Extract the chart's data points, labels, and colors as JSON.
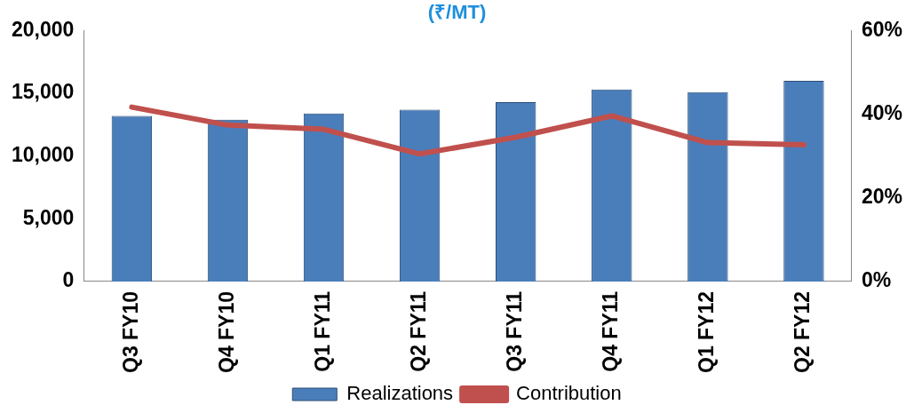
{
  "chart_data": {
    "type": "bar",
    "title": "(₹/MT)",
    "categories": [
      "Q3 FY10",
      "Q4 FY10",
      "Q1 FY11",
      "Q2 FY11",
      "Q3 FY11",
      "Q4 FY11",
      "Q1 FY12",
      "Q2 FY12"
    ],
    "series": [
      {
        "name": "Realizations",
        "color": "#4a7ebb",
        "values": [
          13200,
          12900,
          13400,
          13700,
          14300,
          15300,
          15100,
          16000
        ]
      },
      {
        "name": "Contribution",
        "type": "line",
        "axis": "y2",
        "color": "#c0504d",
        "values": [
          41.7,
          37.4,
          36.4,
          30.5,
          34.5,
          39.6,
          33.2,
          32.7
        ]
      }
    ],
    "ylim": [
      0,
      20000
    ],
    "yticks": [
      {
        "value": 0,
        "label": "0"
      },
      {
        "value": 5000,
        "label": "5,000"
      },
      {
        "value": 10000,
        "label": "10,000"
      },
      {
        "value": 15000,
        "label": "15,000"
      },
      {
        "value": 20000,
        "label": "20,000"
      }
    ],
    "y2lim": [
      0,
      60
    ],
    "y2ticks": [
      {
        "value": 0,
        "label": "0%"
      },
      {
        "value": 20,
        "label": "20%"
      },
      {
        "value": 40,
        "label": "40%"
      },
      {
        "value": 60,
        "label": "60%"
      }
    ],
    "grid": false,
    "legend": "bottom",
    "marker": "none",
    "line_style": "solid"
  }
}
